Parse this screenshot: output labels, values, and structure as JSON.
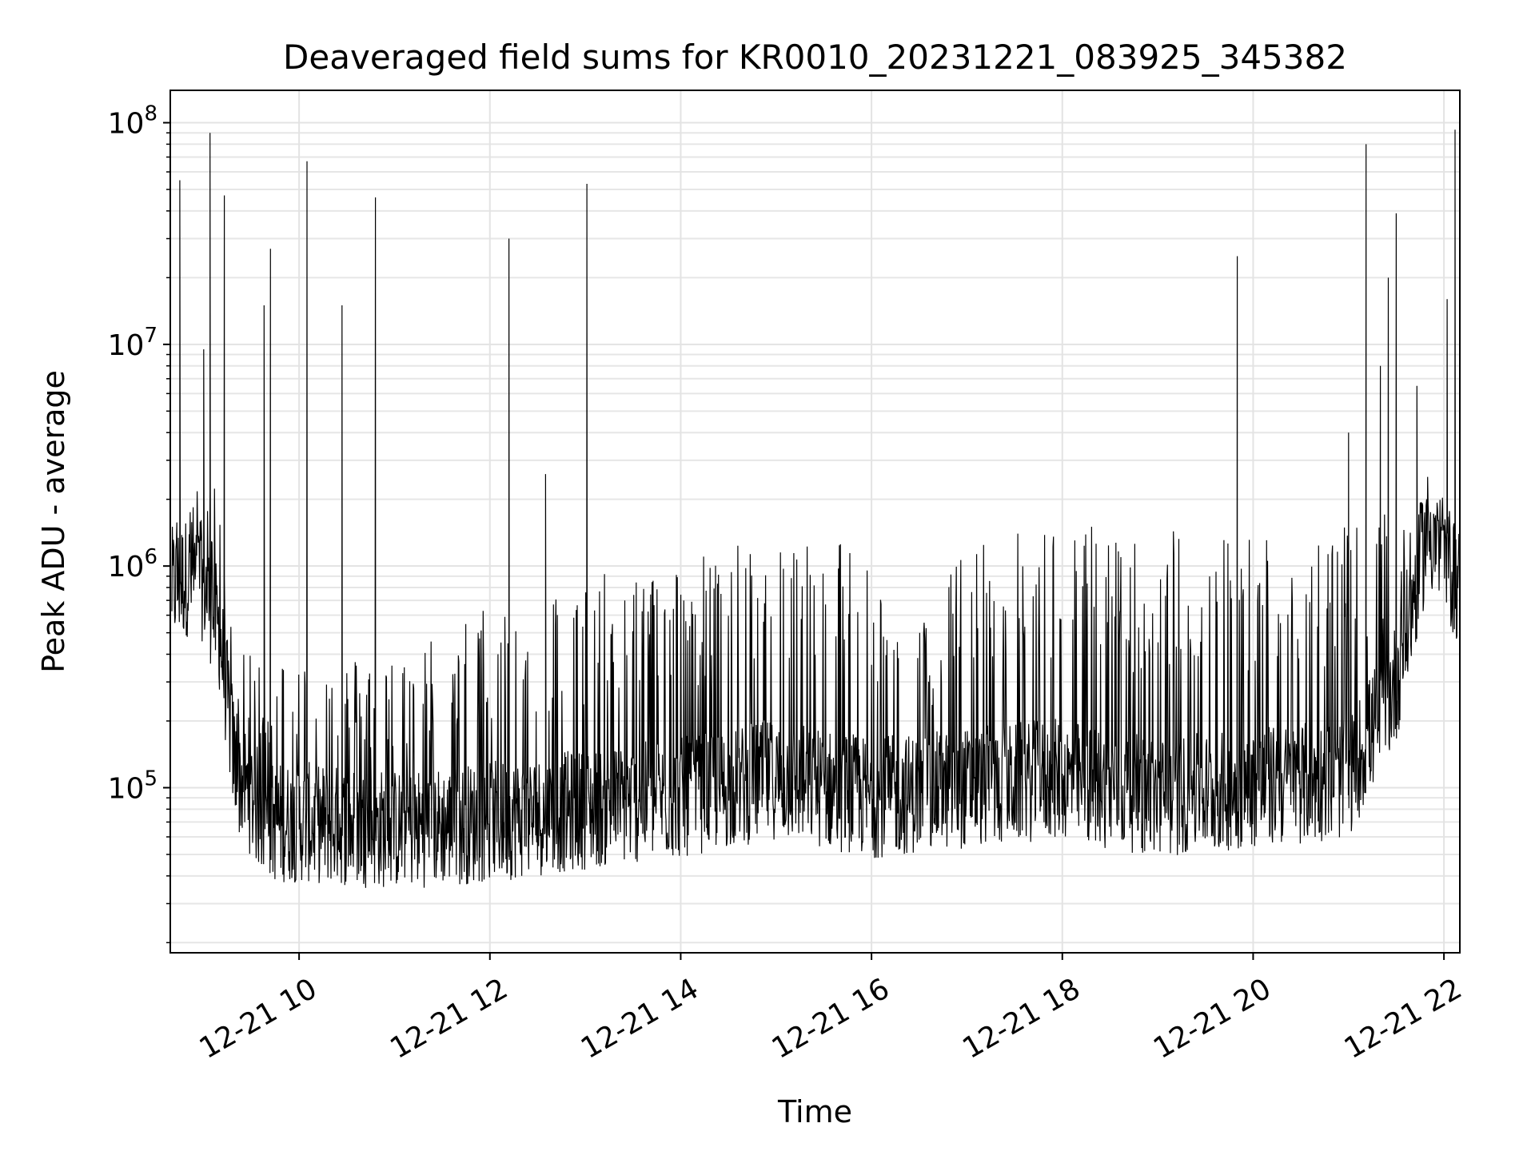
{
  "chart_data": {
    "type": "line",
    "title": "Deaveraged field sums for KR0010_20231221_083925_345382",
    "xlabel": "Time",
    "ylabel": "Peak ADU - average",
    "yscale": "log",
    "xlim": [
      "2023-12-21 08:39",
      "2023-12-21 22:10"
    ],
    "ylim": [
      18000,
      140000000
    ],
    "grid": true,
    "grid_minor": true,
    "x_ticks": [
      "2023-12-21 10:00",
      "2023-12-21 12:00",
      "2023-12-21 14:00",
      "2023-12-21 16:00",
      "2023-12-21 18:00",
      "2023-12-21 20:00",
      "2023-12-21 22:00"
    ],
    "x_tick_labels": [
      "12-21 10",
      "12-21 12",
      "12-21 14",
      "12-21 16",
      "12-21 18",
      "12-21 20",
      "12-21 22"
    ],
    "y_ticks": [
      100000,
      1000000,
      10000000,
      100000000
    ],
    "y_tick_labels": [
      {
        "base": "10",
        "exp": "5"
      },
      {
        "base": "10",
        "exp": "6"
      },
      {
        "base": "10",
        "exp": "7"
      },
      {
        "base": "10",
        "exp": "8"
      }
    ],
    "line_color": "#000000",
    "baseline": [
      [
        "2023-12-21 08:40",
        800000
      ],
      [
        "2023-12-21 08:50",
        900000
      ],
      [
        "2023-12-21 09:00",
        850000
      ],
      [
        "2023-12-21 09:10",
        500000
      ],
      [
        "2023-12-21 09:20",
        120000
      ],
      [
        "2023-12-21 09:40",
        70000
      ],
      [
        "2023-12-21 10:00",
        70000
      ],
      [
        "2023-12-21 11:00",
        65000
      ],
      [
        "2023-12-21 12:00",
        70000
      ],
      [
        "2023-12-21 13:00",
        80000
      ],
      [
        "2023-12-21 14:00",
        90000
      ],
      [
        "2023-12-21 15:00",
        110000
      ],
      [
        "2023-12-21 16:00",
        90000
      ],
      [
        "2023-12-21 17:00",
        100000
      ],
      [
        "2023-12-21 18:00",
        110000
      ],
      [
        "2023-12-21 19:00",
        90000
      ],
      [
        "2023-12-21 20:00",
        100000
      ],
      [
        "2023-12-21 21:00",
        110000
      ],
      [
        "2023-12-21 21:30",
        300000
      ],
      [
        "2023-12-21 21:50",
        1500000
      ],
      [
        "2023-12-21 22:10",
        800000
      ]
    ],
    "burst_ceiling": [
      [
        "2023-12-21 08:40",
        2000000
      ],
      [
        "2023-12-21 09:10",
        2500000
      ],
      [
        "2023-12-21 09:20",
        400000
      ],
      [
        "2023-12-21 10:00",
        400000
      ],
      [
        "2023-12-21 11:00",
        400000
      ],
      [
        "2023-12-21 12:00",
        700000
      ],
      [
        "2023-12-21 13:00",
        900000
      ],
      [
        "2023-12-21 14:00",
        1100000
      ],
      [
        "2023-12-21 15:00",
        1400000
      ],
      [
        "2023-12-21 16:00",
        1400000
      ],
      [
        "2023-12-21 16:20",
        400000
      ],
      [
        "2023-12-21 17:00",
        1300000
      ],
      [
        "2023-12-21 18:00",
        1600000
      ],
      [
        "2023-12-21 19:00",
        1500000
      ],
      [
        "2023-12-21 20:00",
        1500000
      ],
      [
        "2023-12-21 21:00",
        1500000
      ],
      [
        "2023-12-21 21:50",
        2000000
      ],
      [
        "2023-12-21 22:10",
        1500000
      ]
    ],
    "spikes": [
      [
        "2023-12-21 08:45",
        55000000
      ],
      [
        "2023-12-21 09:00",
        9500000
      ],
      [
        "2023-12-21 09:04",
        90000000
      ],
      [
        "2023-12-21 09:13",
        47000000
      ],
      [
        "2023-12-21 09:38",
        15000000
      ],
      [
        "2023-12-21 09:42",
        27000000
      ],
      [
        "2023-12-21 10:05",
        67000000
      ],
      [
        "2023-12-21 10:27",
        15000000
      ],
      [
        "2023-12-21 10:48",
        46000000
      ],
      [
        "2023-12-21 12:12",
        30000000
      ],
      [
        "2023-12-21 12:35",
        2600000
      ],
      [
        "2023-12-21 13:01",
        53000000
      ],
      [
        "2023-12-21 19:50",
        25000000
      ],
      [
        "2023-12-21 21:00",
        4000000
      ],
      [
        "2023-12-21 21:11",
        80000000
      ],
      [
        "2023-12-21 21:20",
        8000000
      ],
      [
        "2023-12-21 21:25",
        20000000
      ],
      [
        "2023-12-21 21:30",
        39000000
      ],
      [
        "2023-12-21 21:43",
        6500000
      ],
      [
        "2023-12-21 22:02",
        16000000
      ],
      [
        "2023-12-21 22:07",
        93000000
      ]
    ]
  }
}
